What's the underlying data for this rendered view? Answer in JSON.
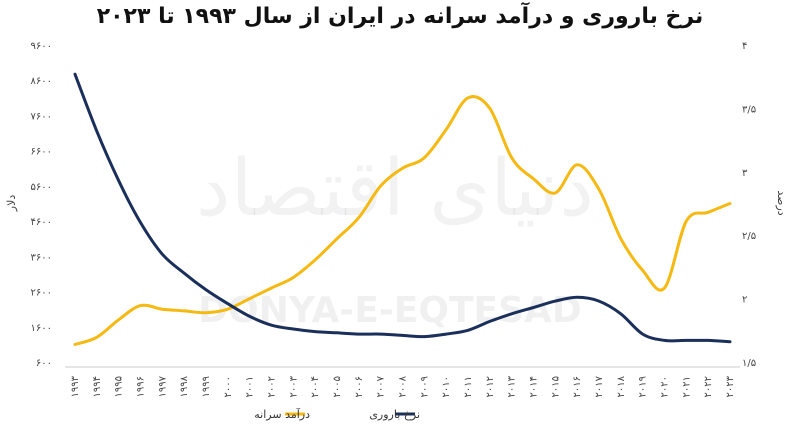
{
  "chart_data": {
    "type": "line",
    "title": "نرخ باروری و درآمد سرانه در ایران از سال ۱۹۹۳ تا ۲۰۲۳",
    "x": [
      "۱۹۹۳",
      "۱۹۹۴",
      "۱۹۹۵",
      "۱۹۹۶",
      "۱۹۹۷",
      "۱۹۹۸",
      "۱۹۹۹",
      "۲۰۰۰",
      "۲۰۰۱",
      "۲۰۰۲",
      "۲۰۰۳",
      "۲۰۰۴",
      "۲۰۰۵",
      "۲۰۰۶",
      "۲۰۰۷",
      "۲۰۰۸",
      "۲۰۰۹",
      "۲۰۱۰",
      "۲۰۱۱",
      "۲۰۱۲",
      "۲۰۱۳",
      "۲۰۱۴",
      "۲۰۱۵",
      "۲۰۱۶",
      "۲۰۱۷",
      "۲۰۱۸",
      "۲۰۱۹",
      "۲۰۲۰",
      "۲۰۲۱",
      "۲۰۲۲",
      "۲۰۲۳"
    ],
    "left_axis": {
      "label": "دلار",
      "ylim": [
        600,
        9600
      ],
      "ticks": [
        "۶۰۰",
        "۱۶۰۰",
        "۲۶۰۰",
        "۳۶۰۰",
        "۴۶۰۰",
        "۵۶۰۰",
        "۶۶۰۰",
        "۷۶۰۰",
        "۸۶۰۰",
        "۹۶۰۰"
      ]
    },
    "right_axis": {
      "label": "درصد",
      "ylim": [
        1.5,
        4
      ],
      "ticks": [
        "۱/۵",
        "۲",
        "۲/۵",
        "۳",
        "۳/۵",
        "۴"
      ]
    },
    "series": [
      {
        "name": "درآمد سرانه",
        "axis": "left",
        "color": "#F5B912",
        "values": [
          1100,
          1300,
          1800,
          2200,
          2100,
          2050,
          2000,
          2100,
          2400,
          2700,
          3000,
          3500,
          4100,
          4700,
          5600,
          6100,
          6400,
          7200,
          8100,
          7800,
          6400,
          5800,
          5400,
          6200,
          5500,
          4100,
          3200,
          2700,
          4600,
          4850,
          5100
        ]
      },
      {
        "name": "نرخ باروری",
        "axis": "right",
        "color": "#1B2F5B",
        "values": [
          3.77,
          3.32,
          2.93,
          2.6,
          2.35,
          2.2,
          2.07,
          1.96,
          1.86,
          1.79,
          1.76,
          1.74,
          1.73,
          1.72,
          1.72,
          1.71,
          1.7,
          1.72,
          1.75,
          1.82,
          1.88,
          1.93,
          1.98,
          2.01,
          1.98,
          1.88,
          1.72,
          1.67,
          1.67,
          1.67,
          1.66
        ]
      }
    ],
    "legend_position": "bottom-center",
    "grid": false
  },
  "watermark": {
    "text": "DONYA-E-EQTESAD",
    "persian": "دنیای اقتصاد"
  }
}
